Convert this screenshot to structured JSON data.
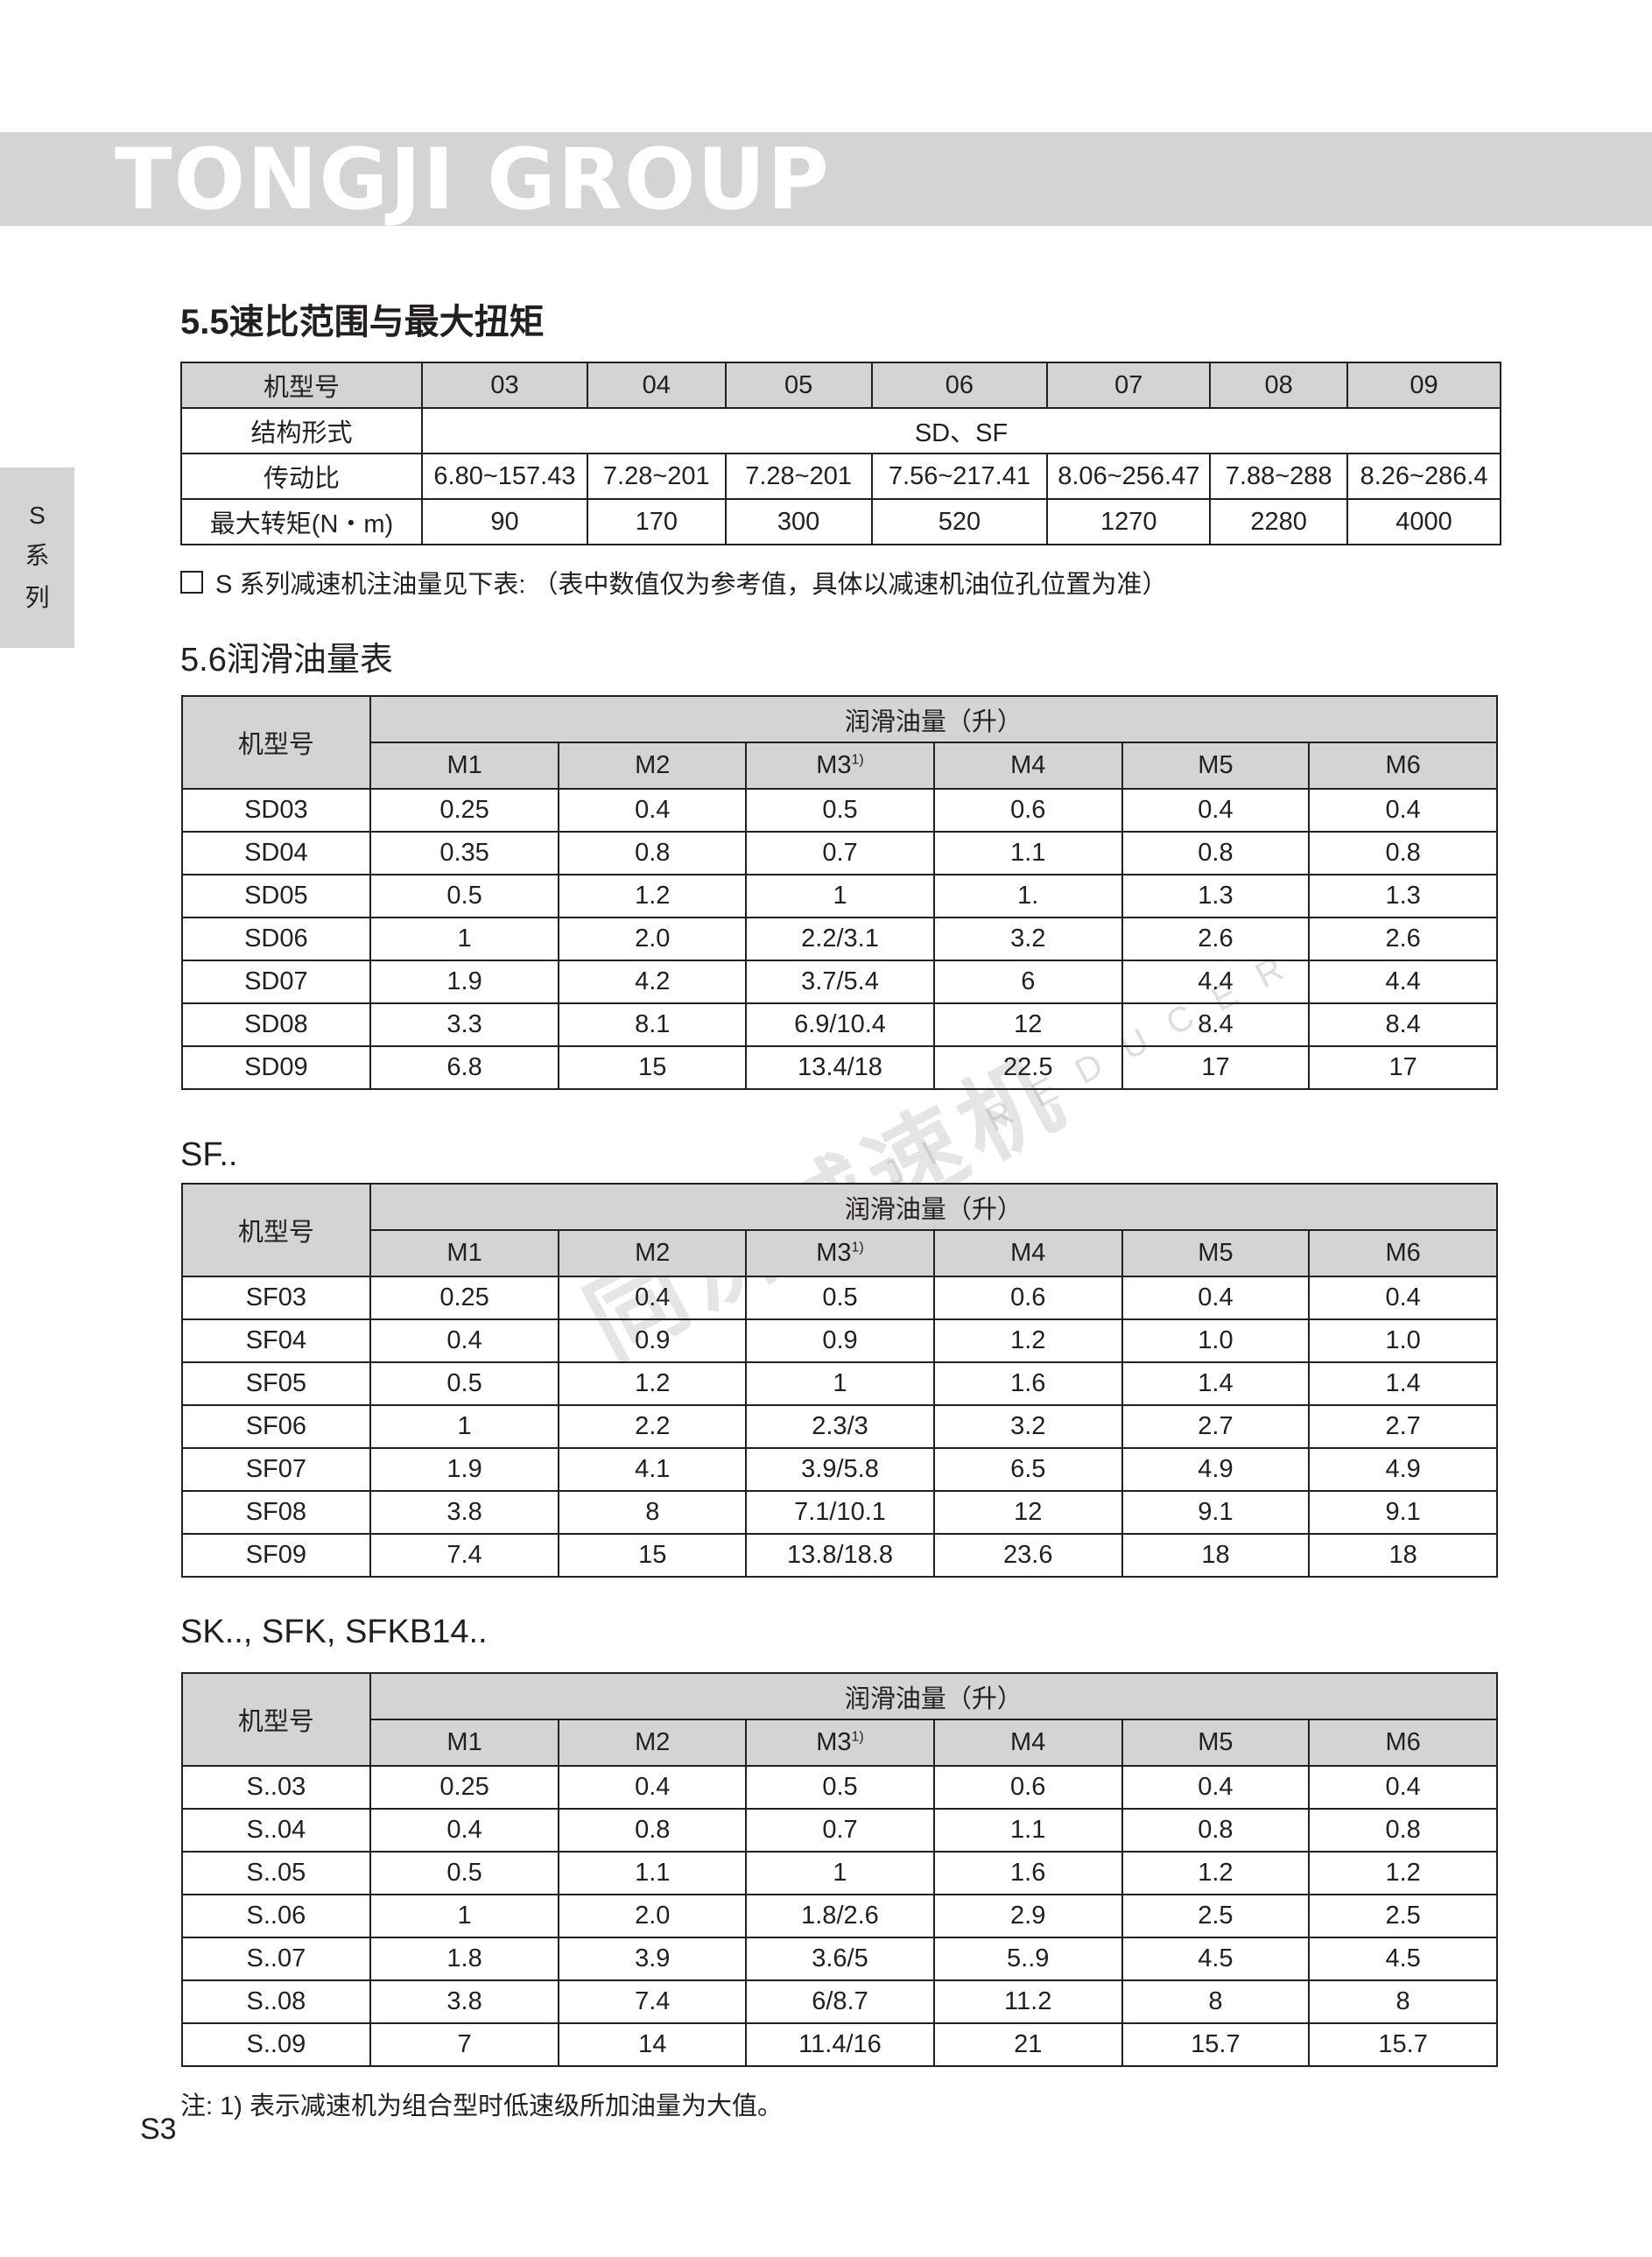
{
  "header": {
    "brand": "TONGJI GROUP"
  },
  "side_tab": {
    "chars": [
      "S",
      "系",
      "列"
    ]
  },
  "section_5_5": {
    "title": "5.5速比范围与最大扭矩",
    "rows": [
      {
        "label": "机型号",
        "cells": [
          "03",
          "04",
          "05",
          "06",
          "07",
          "08",
          "09"
        ]
      },
      {
        "label": "结构形式",
        "span": "SD、SF"
      },
      {
        "label": "传动比",
        "cells": [
          "6.80~157.43",
          "7.28~201",
          "7.28~201",
          "7.56~217.41",
          "8.06~256.47",
          "7.88~288",
          "8.26~286.4"
        ]
      },
      {
        "label": "最大转矩(N・m)",
        "cells": [
          "90",
          "170",
          "300",
          "520",
          "1270",
          "2280",
          "4000"
        ]
      }
    ],
    "note": "S 系列减速机注油量见下表: （表中数值仅为参考值，具体以减速机油位孔位置为准）"
  },
  "section_5_6": {
    "title": "5.6润滑油量表"
  },
  "lube_header": {
    "model": "机型号",
    "group": "润滑油量（升）",
    "cols": [
      "M1",
      "M2",
      "M3",
      "M4",
      "M5",
      "M6"
    ],
    "m3_sup": "1)"
  },
  "tables": [
    {
      "title": "",
      "rows": [
        [
          "SD03",
          "0.25",
          "0.4",
          "0.5",
          "0.6",
          "0.4",
          "0.4"
        ],
        [
          "SD04",
          "0.35",
          "0.8",
          "0.7",
          "1.1",
          "0.8",
          "0.8"
        ],
        [
          "SD05",
          "0.5",
          "1.2",
          "1",
          "1.",
          "1.3",
          "1.3"
        ],
        [
          "SD06",
          "1",
          "2.0",
          "2.2/3.1",
          "3.2",
          "2.6",
          "2.6"
        ],
        [
          "SD07",
          "1.9",
          "4.2",
          "3.7/5.4",
          "6",
          "4.4",
          "4.4"
        ],
        [
          "SD08",
          "3.3",
          "8.1",
          "6.9/10.4",
          "12",
          "8.4",
          "8.4"
        ],
        [
          "SD09",
          "6.8",
          "15",
          "13.4/18",
          "22.5",
          "17",
          "17"
        ]
      ]
    },
    {
      "title": "SF..",
      "rows": [
        [
          "SF03",
          "0.25",
          "0.4",
          "0.5",
          "0.6",
          "0.4",
          "0.4"
        ],
        [
          "SF04",
          "0.4",
          "0.9",
          "0.9",
          "1.2",
          "1.0",
          "1.0"
        ],
        [
          "SF05",
          "0.5",
          "1.2",
          "1",
          "1.6",
          "1.4",
          "1.4"
        ],
        [
          "SF06",
          "1",
          "2.2",
          "2.3/3",
          "3.2",
          "2.7",
          "2.7"
        ],
        [
          "SF07",
          "1.9",
          "4.1",
          "3.9/5.8",
          "6.5",
          "4.9",
          "4.9"
        ],
        [
          "SF08",
          "3.8",
          "8",
          "7.1/10.1",
          "12",
          "9.1",
          "9.1"
        ],
        [
          "SF09",
          "7.4",
          "15",
          "13.8/18.8",
          "23.6",
          "18",
          "18"
        ]
      ]
    },
    {
      "title": "SK.., SFK, SFKB14..",
      "rows": [
        [
          "S..03",
          "0.25",
          "0.4",
          "0.5",
          "0.6",
          "0.4",
          "0.4"
        ],
        [
          "S..04",
          "0.4",
          "0.8",
          "0.7",
          "1.1",
          "0.8",
          "0.8"
        ],
        [
          "S..05",
          "0.5",
          "1.1",
          "1",
          "1.6",
          "1.2",
          "1.2"
        ],
        [
          "S..06",
          "1",
          "2.0",
          "1.8/2.6",
          "2.9",
          "2.5",
          "2.5"
        ],
        [
          "S..07",
          "1.8",
          "3.9",
          "3.6/5",
          "5..9",
          "4.5",
          "4.5"
        ],
        [
          "S..08",
          "3.8",
          "7.4",
          "6/8.7",
          "11.2",
          "8",
          "8"
        ],
        [
          "S..09",
          "7",
          "14",
          "11.4/16",
          "21",
          "15.7",
          "15.7"
        ]
      ]
    }
  ],
  "footnote": "注:  1) 表示减速机为组合型时低速级所加油量为大值。",
  "page_number": "S3",
  "watermark": {
    "cn": "同济减速机",
    "en": "TONGJI REDUCER"
  }
}
